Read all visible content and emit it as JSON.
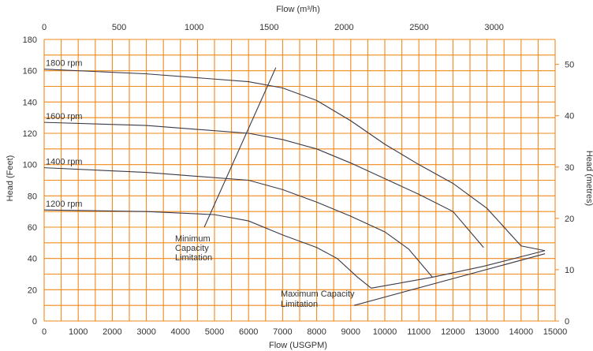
{
  "chart_data": {
    "type": "line",
    "title": "",
    "xlabel": "Flow (USGPM)",
    "ylabel": "Head (Feet)",
    "x2label": "Flow (m³/h)",
    "y2label": "Head (metres)",
    "xlim": [
      0,
      15000
    ],
    "ylim": [
      0,
      180
    ],
    "x_ticks": [
      "0",
      "1000",
      "2000",
      "3000",
      "4000",
      "5000",
      "6000",
      "7000",
      "8000",
      "9000",
      "10000",
      "11000",
      "12000",
      "13000",
      "14000",
      "15000"
    ],
    "y_ticks": [
      "0",
      "20",
      "40",
      "60",
      "80",
      "100",
      "120",
      "140",
      "160",
      "180"
    ],
    "x2_ticks": [
      "0",
      "500",
      "1000",
      "1500",
      "2000",
      "2500",
      "3000"
    ],
    "y2_ticks": [
      "0",
      "10",
      "20",
      "30",
      "40",
      "50"
    ],
    "grid": true,
    "grid_color": "#f08a1c",
    "line_color": "#3a3a4a",
    "series": [
      {
        "name": "1800 rpm",
        "x": [
          0,
          3000,
          6000,
          7000,
          8000,
          9000,
          10000,
          11000,
          12000,
          13000,
          14000,
          14700
        ],
        "y": [
          161,
          158,
          153,
          149,
          141,
          128,
          113,
          100,
          88,
          72,
          48,
          45
        ]
      },
      {
        "name": "1600 rpm",
        "x": [
          0,
          3000,
          6000,
          7000,
          8000,
          9000,
          10000,
          11000,
          12000,
          12900
        ],
        "y": [
          127,
          125,
          120,
          116,
          110,
          101,
          91,
          81,
          70,
          47
        ]
      },
      {
        "name": "1400 rpm",
        "x": [
          0,
          3000,
          6000,
          7000,
          8000,
          9000,
          10000,
          10700,
          11400
        ],
        "y": [
          98,
          95,
          90,
          84,
          76,
          67,
          57,
          46,
          28
        ]
      },
      {
        "name": "1200 rpm",
        "x": [
          0,
          3000,
          5000,
          6000,
          7000,
          8000,
          8600,
          9200,
          9600
        ],
        "y": [
          71,
          70,
          68,
          64,
          55,
          47,
          40,
          28,
          21
        ]
      }
    ],
    "annotations": {
      "min_capacity": [
        "Minimum",
        "Capacity",
        "Limitation"
      ],
      "max_capacity": [
        "Maximum Capacity",
        "Limitation"
      ]
    },
    "min_capacity_line": {
      "x": [
        4700,
        6800
      ],
      "y": [
        60,
        162
      ]
    },
    "max_capacity_line": [
      {
        "x": [
          9600,
          11400,
          12900,
          14700
        ],
        "y": [
          21,
          28,
          35,
          45
        ]
      },
      {
        "x": [
          9100,
          14700
        ],
        "y": [
          10,
          43
        ]
      }
    ]
  }
}
